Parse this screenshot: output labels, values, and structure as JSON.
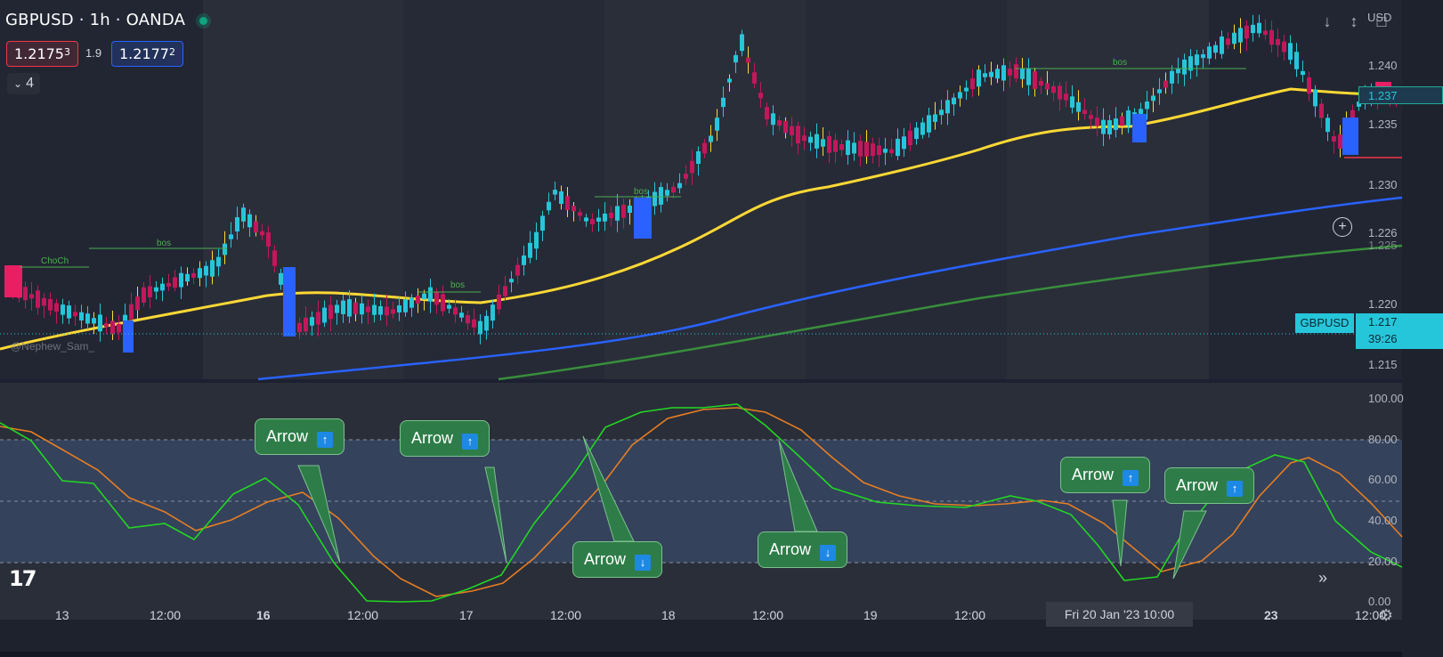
{
  "header": {
    "symbol_title": "GBPUSD · 1h · OANDA",
    "sell_price_main": "1.2175",
    "sell_price_sup": "3",
    "spread": "1.9",
    "buy_price_main": "1.2177",
    "buy_price_sup": "2",
    "indicator_count": "4"
  },
  "toolbar_icons": [
    "arrow-down-icon",
    "collapse-icon",
    "fullscreen-icon"
  ],
  "price_axis": {
    "currency": "USD",
    "labels": [
      "1.240",
      "1.235",
      "1.230",
      "1.226",
      "1.225",
      "1.220",
      "1.215"
    ],
    "last_price": "1.237",
    "symbol_tag": "GBPUSD",
    "current_price": "1.217",
    "countdown": "39:26"
  },
  "osc_axis": {
    "labels": [
      "100.00",
      "80.00",
      "60.00",
      "40.00",
      "20.00",
      "0.00"
    ]
  },
  "time_axis": {
    "labels": [
      {
        "text": "13",
        "bold": false
      },
      {
        "text": "12:00",
        "bold": false
      },
      {
        "text": "16",
        "bold": true
      },
      {
        "text": "12:00",
        "bold": false
      },
      {
        "text": "17",
        "bold": false
      },
      {
        "text": "12:00",
        "bold": false
      },
      {
        "text": "18",
        "bold": false
      },
      {
        "text": "12:00",
        "bold": false
      },
      {
        "text": "19",
        "bold": false
      },
      {
        "text": "12:00",
        "bold": false
      },
      {
        "text": "20",
        "bold": false
      },
      {
        "text": "23",
        "bold": true
      },
      {
        "text": "12:00",
        "bold": false
      }
    ],
    "cursor_label": "Fri 20 Jan '23   10:00"
  },
  "chart_labels": {
    "choch": "ChoCh",
    "bos": "bos",
    "watermark": "@Nephew_Sam_"
  },
  "arrows": [
    {
      "label": "Arrow",
      "dir": "up"
    },
    {
      "label": "Arrow",
      "dir": "up"
    },
    {
      "label": "Arrow",
      "dir": "down"
    },
    {
      "label": "Arrow",
      "dir": "down"
    },
    {
      "label": "Arrow",
      "dir": "up"
    },
    {
      "label": "Arrow",
      "dir": "up"
    }
  ],
  "colors": {
    "background": "#131722",
    "bull_candle": "#26c6da",
    "bear_candle": "#c2185b",
    "ema_fast": "#fdd835",
    "ema_mid": "#2962ff",
    "ema_slow": "#388e3c",
    "stoch_k": "#22d722",
    "stoch_d": "#e67e22",
    "arrow_bg": "#2e7d48"
  }
}
